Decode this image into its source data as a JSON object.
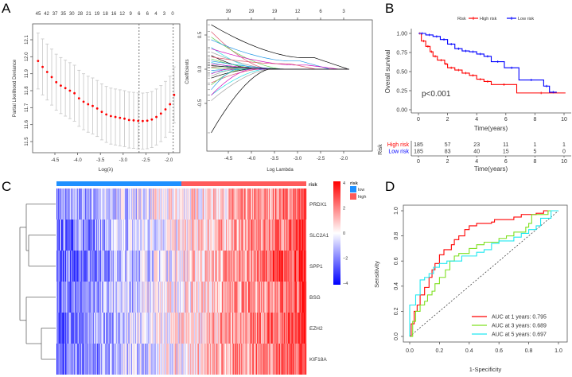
{
  "panels": {
    "a": "A",
    "b": "B",
    "c": "C",
    "d": "D"
  },
  "chart_data": [
    {
      "id": "lasso-cv",
      "type": "scatter",
      "xlabel": "Log(λ)",
      "ylabel": "Partial Likelihood Deviance",
      "xticks": [
        -4.5,
        -4.0,
        -3.5,
        -3.0,
        -2.5,
        -2.0
      ],
      "yticks": [
        11.5,
        11.6,
        11.7,
        11.8,
        11.9,
        12.0,
        12.1
      ],
      "xlim": [
        -4.95,
        -1.8
      ],
      "ylim": [
        11.45,
        12.2
      ],
      "top_labels": [
        "45",
        "42",
        "37",
        "35",
        "30",
        "28",
        "21",
        "19",
        "18",
        "16",
        "12",
        "9",
        "6",
        "6",
        "4",
        "3",
        "0"
      ],
      "x": [
        -4.87,
        -4.77,
        -4.67,
        -4.57,
        -4.47,
        -4.37,
        -4.27,
        -4.17,
        -4.07,
        -3.97,
        -3.87,
        -3.77,
        -3.67,
        -3.57,
        -3.47,
        -3.37,
        -3.27,
        -3.17,
        -3.07,
        -2.97,
        -2.87,
        -2.77,
        -2.67,
        -2.57,
        -2.47,
        -2.37,
        -2.27,
        -2.17,
        -2.07,
        -1.97,
        -1.88
      ],
      "y": [
        11.975,
        11.94,
        11.91,
        11.88,
        11.85,
        11.83,
        11.815,
        11.8,
        11.785,
        11.755,
        11.735,
        11.72,
        11.71,
        11.695,
        11.675,
        11.66,
        11.65,
        11.645,
        11.64,
        11.635,
        11.627,
        11.625,
        11.622,
        11.621,
        11.623,
        11.63,
        11.645,
        11.665,
        11.69,
        11.72,
        11.775
      ],
      "error": 0.165,
      "vlines": [
        -2.65,
        -1.9
      ],
      "point_color": "#FF0000",
      "bar_color": "#CCCCCC"
    },
    {
      "id": "lasso-path",
      "type": "line",
      "xlabel": "Log Lambda",
      "ylabel": "Coefficients",
      "xticks": [
        -4.5,
        -4.0,
        -3.5,
        -3.0,
        -2.5,
        -2.0
      ],
      "yticks": [
        -0.5,
        0.0,
        0.5
      ],
      "xlim": [
        -4.95,
        -1.8
      ],
      "ylim": [
        -1.0,
        0.72
      ],
      "top_labels": [
        "39",
        "29",
        "19",
        "12",
        "6",
        "3"
      ],
      "x_start": -4.87,
      "palette": [
        "#000000",
        "#DF536B",
        "#61D04F",
        "#2297E6",
        "#28E2E5",
        "#CD0BBC",
        "#9E9E9E"
      ],
      "paths": [
        {
          "start": 0.65,
          "zero_at": -1.9,
          "bump": 0.17
        },
        {
          "start": 0.55,
          "zero_at": -3.6
        },
        {
          "start": 0.47,
          "zero_at": -3.3
        },
        {
          "start": 0.43,
          "zero_at": -2.3,
          "bump": 0.12
        },
        {
          "start": 0.32,
          "zero_at": -3.8
        },
        {
          "start": 0.3,
          "zero_at": -2.1,
          "bump": 0.06
        },
        {
          "start": 0.25,
          "zero_at": -3.5
        },
        {
          "start": 0.2,
          "zero_at": -3.9
        },
        {
          "start": 0.18,
          "zero_at": -2.6,
          "bump": 0.08
        },
        {
          "start": 0.15,
          "zero_at": -3.7
        },
        {
          "start": 0.12,
          "zero_at": -3.2
        },
        {
          "start": 0.1,
          "zero_at": -4.0
        },
        {
          "start": 0.08,
          "zero_at": -3.4
        },
        {
          "start": 0.06,
          "zero_at": -3.9
        },
        {
          "start": 0.05,
          "zero_at": -3.0
        },
        {
          "start": 0.03,
          "zero_at": -4.2
        },
        {
          "start": 0.02,
          "zero_at": -3.6
        },
        {
          "start": -0.02,
          "zero_at": -4.4
        },
        {
          "start": -0.05,
          "zero_at": -4.1
        },
        {
          "start": -0.07,
          "zero_at": -4.5
        },
        {
          "start": -0.1,
          "zero_at": -4.3
        },
        {
          "start": -0.13,
          "zero_at": -4.0
        },
        {
          "start": -0.2,
          "zero_at": -3.8
        },
        {
          "start": -0.23,
          "zero_at": -4.2
        },
        {
          "start": -0.3,
          "zero_at": -4.3
        },
        {
          "start": -0.38,
          "zero_at": -3.7
        },
        {
          "start": -0.38,
          "zero_at": -4.0
        },
        {
          "start": -0.46,
          "zero_at": -3.6
        },
        {
          "start": -0.93,
          "zero_at": -3.6
        }
      ]
    },
    {
      "id": "km",
      "type": "line",
      "legend_title": "Risk",
      "xlabel": "Time(years)",
      "ylabel": "Overall survival",
      "xticks": [
        0,
        2,
        4,
        6,
        8,
        10
      ],
      "yticks": [
        "0.00",
        "0.25",
        "0.50",
        "0.75",
        "1.00"
      ],
      "xlim": [
        -0.5,
        10.5
      ],
      "ylim": [
        0,
        1.03
      ],
      "annotation": "p<0.001",
      "legend_placement": "top",
      "series": [
        {
          "name": "High risk",
          "color": "#FF0000",
          "points": [
            [
              0,
              1
            ],
            [
              0.2,
              0.9
            ],
            [
              0.5,
              0.83
            ],
            [
              0.8,
              0.76
            ],
            [
              1,
              0.7
            ],
            [
              1.3,
              0.65
            ],
            [
              1.8,
              0.6
            ],
            [
              2,
              0.55
            ],
            [
              2.5,
              0.52
            ],
            [
              3,
              0.48
            ],
            [
              3.5,
              0.45
            ],
            [
              4,
              0.4
            ],
            [
              4.5,
              0.37
            ],
            [
              5,
              0.33
            ],
            [
              6.75,
              0.22
            ],
            [
              10.1,
              0.22
            ]
          ]
        },
        {
          "name": "Low risk",
          "color": "#0000FF",
          "points": [
            [
              0,
              1
            ],
            [
              0.5,
              0.98
            ],
            [
              1,
              0.96
            ],
            [
              1.5,
              0.92
            ],
            [
              2,
              0.86
            ],
            [
              2.5,
              0.8
            ],
            [
              3,
              0.77
            ],
            [
              3.5,
              0.76
            ],
            [
              4,
              0.73
            ],
            [
              4.5,
              0.7
            ],
            [
              5,
              0.63
            ],
            [
              5.9,
              0.55
            ],
            [
              6.9,
              0.39
            ],
            [
              8.6,
              0.31
            ],
            [
              9,
              0.23
            ],
            [
              9.5,
              0.23
            ]
          ]
        }
      ],
      "risk_table": {
        "title": "Risk",
        "xlabel": "Time(years)",
        "times": [
          0,
          2,
          4,
          6,
          8,
          10
        ],
        "rows": [
          {
            "name": "High risk",
            "color": "#FF0000",
            "counts": [
              "185",
              "57",
              "23",
              "11",
              "1",
              "1"
            ]
          },
          {
            "name": "Low risk",
            "color": "#0000FF",
            "counts": [
              "185",
              "83",
              "40",
              "15",
              "5",
              "0"
            ]
          }
        ]
      }
    },
    {
      "id": "heatmap",
      "type": "heatmap",
      "genes": [
        "PRDX1",
        "SLC2A1",
        "SPP1",
        "BSG",
        "EZH2",
        "KIF18A"
      ],
      "samples_low": 185,
      "samples_high": 185,
      "annotation_title": "risk",
      "groups": [
        {
          "name": "low",
          "color": "#1E90FF"
        },
        {
          "name": "high",
          "color": "#FF5A5A"
        }
      ],
      "color_scale": {
        "ticks": [
          "4",
          "2",
          "0",
          "-2",
          "-4"
        ],
        "low": "#0000FF",
        "mid": "#FFFFFF",
        "high": "#FF0000",
        "range": [
          -4,
          4
        ]
      }
    },
    {
      "id": "roc",
      "type": "line",
      "xlabel": "1-Specificity",
      "ylabel": "Sensitivity",
      "xticks": [
        "0.0",
        "0.2",
        "0.4",
        "0.6",
        "0.8",
        "1.0"
      ],
      "yticks": [
        "0.0",
        "0.2",
        "0.4",
        "0.6",
        "0.8",
        "1.0"
      ],
      "xlim": [
        0,
        1
      ],
      "ylim": [
        0,
        1
      ],
      "legend_placement": "bottom-right",
      "series": [
        {
          "name": "AUC at 1 years: 0.795",
          "color": "#FF0000",
          "points": [
            [
              0,
              0
            ],
            [
              0.01,
              0.1
            ],
            [
              0.03,
              0.2
            ],
            [
              0.05,
              0.25
            ],
            [
              0.07,
              0.33
            ],
            [
              0.1,
              0.39
            ],
            [
              0.13,
              0.47
            ],
            [
              0.15,
              0.53
            ],
            [
              0.17,
              0.58
            ],
            [
              0.2,
              0.65
            ],
            [
              0.23,
              0.69
            ],
            [
              0.28,
              0.73
            ],
            [
              0.3,
              0.77
            ],
            [
              0.33,
              0.8
            ],
            [
              0.37,
              0.85
            ],
            [
              0.4,
              0.88
            ],
            [
              0.45,
              0.9
            ],
            [
              0.55,
              0.91
            ],
            [
              0.57,
              0.93
            ],
            [
              0.7,
              0.95
            ],
            [
              0.75,
              0.97
            ],
            [
              0.85,
              0.98
            ],
            [
              0.9,
              1
            ],
            [
              1,
              1
            ]
          ]
        },
        {
          "name": "AUC at 3 years: 0.689",
          "color": "#7FE020",
          "points": [
            [
              0,
              0
            ],
            [
              0.02,
              0.12
            ],
            [
              0.04,
              0.2
            ],
            [
              0.07,
              0.25
            ],
            [
              0.1,
              0.28
            ],
            [
              0.12,
              0.33
            ],
            [
              0.15,
              0.36
            ],
            [
              0.17,
              0.42
            ],
            [
              0.2,
              0.47
            ],
            [
              0.24,
              0.53
            ],
            [
              0.27,
              0.6
            ],
            [
              0.3,
              0.64
            ],
            [
              0.33,
              0.66
            ],
            [
              0.4,
              0.7
            ],
            [
              0.45,
              0.73
            ],
            [
              0.5,
              0.75
            ],
            [
              0.6,
              0.78
            ],
            [
              0.65,
              0.8
            ],
            [
              0.7,
              0.83
            ],
            [
              0.78,
              0.87
            ],
            [
              0.8,
              0.9
            ],
            [
              0.82,
              0.97
            ],
            [
              0.93,
              1
            ],
            [
              1,
              1
            ]
          ]
        },
        {
          "name": "AUC at 5 years: 0.697",
          "color": "#20E8F0",
          "points": [
            [
              0,
              0
            ],
            [
              0,
              0.25
            ],
            [
              0.04,
              0.33
            ],
            [
              0.07,
              0.45
            ],
            [
              0.1,
              0.47
            ],
            [
              0.13,
              0.5
            ],
            [
              0.16,
              0.55
            ],
            [
              0.2,
              0.58
            ],
            [
              0.25,
              0.6
            ],
            [
              0.35,
              0.64
            ],
            [
              0.45,
              0.67
            ],
            [
              0.5,
              0.69
            ],
            [
              0.55,
              0.74
            ],
            [
              0.6,
              0.76
            ],
            [
              0.7,
              0.79
            ],
            [
              0.75,
              0.82
            ],
            [
              0.8,
              0.85
            ],
            [
              0.85,
              0.88
            ],
            [
              0.88,
              0.94
            ],
            [
              0.95,
              0.97
            ],
            [
              0.95,
              1
            ],
            [
              1,
              1
            ]
          ]
        }
      ]
    }
  ]
}
